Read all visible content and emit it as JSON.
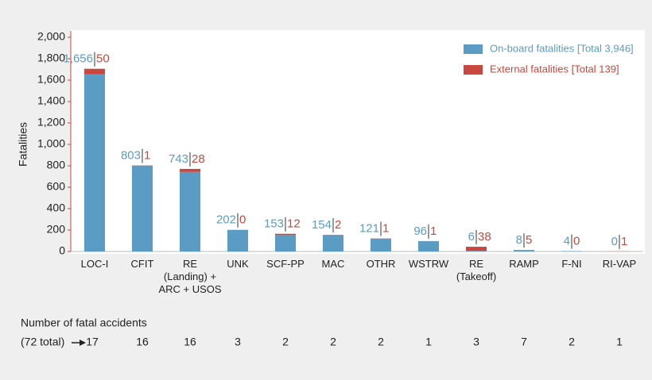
{
  "chart_data": {
    "type": "bar",
    "stacked": true,
    "ylabel": "Fatalities",
    "categories": [
      "LOC-I",
      "CFIT",
      "RE\n(Landing) +\nARC + USOS",
      "UNK",
      "SCF-PP",
      "MAC",
      "OTHR",
      "WSTRW",
      "RE\n(Takeoff)",
      "RAMP",
      "F-NI",
      "RI-VAP"
    ],
    "series": [
      {
        "name": "On-board fatalities [Total 3,946]",
        "color": "#5a9cc3",
        "values": [
          1656,
          803,
          743,
          202,
          153,
          154,
          121,
          96,
          6,
          8,
          4,
          0
        ],
        "value_labels": [
          "1,656",
          "803",
          "743",
          "202",
          "153",
          "154",
          "121",
          "96",
          "6",
          "8",
          "4",
          "0"
        ]
      },
      {
        "name": "External fatalities [Total 139]",
        "color": "#c9473d",
        "values": [
          50,
          1,
          28,
          0,
          12,
          2,
          1,
          1,
          38,
          5,
          0,
          1
        ]
      }
    ],
    "ylim": [
      0,
      2000
    ],
    "yticks": [
      0,
      200,
      400,
      600,
      800,
      {
        "value": 1000,
        "label": "1,000"
      },
      {
        "value": 1200,
        "label": "1,200"
      },
      {
        "value": 1400,
        "label": "1,400"
      },
      {
        "value": 1600,
        "label": "1,600"
      },
      {
        "value": 1800,
        "label": "1,800"
      },
      {
        "value": 2000,
        "label": "2,000"
      }
    ],
    "grid": false,
    "legend": "top-right",
    "accidents_title": "Number of fatal accidents",
    "accidents_total": "(72 total)",
    "accidents": [
      17,
      16,
      16,
      3,
      2,
      2,
      2,
      1,
      3,
      7,
      2,
      1
    ]
  }
}
